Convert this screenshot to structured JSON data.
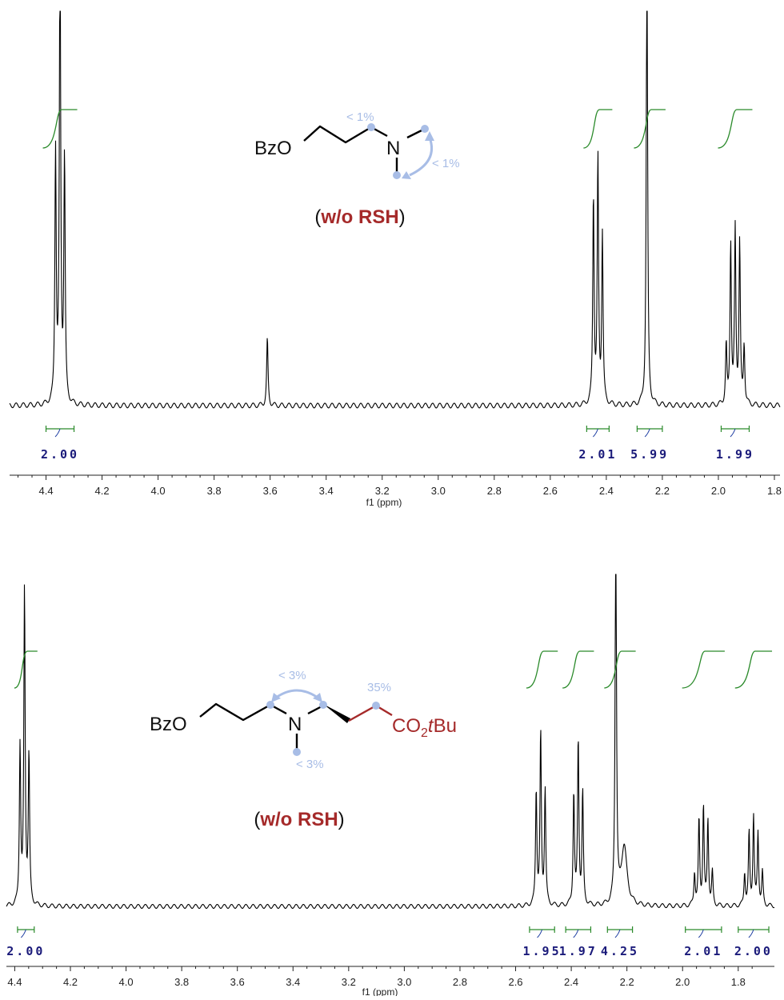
{
  "chart_data": [
    {
      "type": "line",
      "xlabel": "f1 (ppm)",
      "x_tick_labels": [
        "4.4",
        "4.2",
        "4.0",
        "3.8",
        "3.6",
        "3.4",
        "3.2",
        "3.0",
        "2.8",
        "2.6",
        "2.4",
        "2.2",
        "2.0",
        "1.8"
      ],
      "xlim": [
        4.53,
        1.78
      ],
      "peaks": [
        {
          "center": 4.35,
          "label": "triplet",
          "heights": [
            0.62,
            1.2,
            0.64
          ],
          "J": 0.016
        },
        {
          "center": 3.61,
          "label": "singlet",
          "heights": [
            0.17
          ]
        },
        {
          "center": 2.43,
          "label": "triplet",
          "heights": [
            0.43,
            0.62,
            0.53
          ],
          "J": 0.016
        },
        {
          "center": 2.255,
          "label": "singlet",
          "heights": [
            1.2
          ]
        },
        {
          "center": 1.94,
          "label": "quintet",
          "heights": [
            0.15,
            0.41,
            0.44,
            0.41,
            0.15
          ],
          "J": 0.016
        }
      ],
      "integrals": [
        {
          "from": 4.4,
          "to": 4.3,
          "value": "2.00"
        },
        {
          "from": 2.47,
          "to": 2.39,
          "value": "2.01"
        },
        {
          "from": 2.29,
          "to": 2.2,
          "value": "5.99"
        },
        {
          "from": 1.99,
          "to": 1.89,
          "value": "1.99"
        }
      ],
      "structure": {
        "left_group": "BzO",
        "nitrogen": "N",
        "annotation_1": "< 1%",
        "annotation_2": "< 1%"
      },
      "condition": {
        "open": "(",
        "text": "w/o RSH",
        "close": ")"
      }
    },
    {
      "type": "line",
      "xlabel": "f1 (ppm)",
      "x_tick_labels": [
        "4.4",
        "4.2",
        "4.0",
        "3.8",
        "3.6",
        "3.4",
        "3.2",
        "3.0",
        "2.8",
        "2.6",
        "2.4",
        "2.2",
        "2.0",
        "1.8"
      ],
      "xlim": [
        4.43,
        1.67
      ],
      "peaks": [
        {
          "center": 4.365,
          "label": "triplet",
          "heights": [
            0.45,
            0.95,
            0.48
          ],
          "J": 0.016
        },
        {
          "center": 2.51,
          "label": "triplet",
          "heights": [
            0.35,
            0.52,
            0.35
          ],
          "J": 0.016
        },
        {
          "center": 2.375,
          "label": "triplet",
          "heights": [
            0.34,
            0.5,
            0.34
          ],
          "J": 0.016
        },
        {
          "center": 2.24,
          "label": "singlet",
          "heights": [
            1.2
          ]
        },
        {
          "center": 2.21,
          "label": "multiplet",
          "heights": [
            0.18
          ]
        },
        {
          "center": 1.925,
          "label": "quintet",
          "heights": [
            0.1,
            0.26,
            0.3,
            0.26,
            0.1
          ],
          "J": 0.016
        },
        {
          "center": 1.745,
          "label": "quintet",
          "heights": [
            0.1,
            0.22,
            0.27,
            0.22,
            0.1
          ],
          "J": 0.016
        }
      ],
      "integrals": [
        {
          "from": 4.39,
          "to": 4.33,
          "value": "2.00"
        },
        {
          "from": 2.55,
          "to": 2.46,
          "value": "1.95"
        },
        {
          "from": 2.42,
          "to": 2.33,
          "value": "1.97"
        },
        {
          "from": 2.27,
          "to": 2.18,
          "value": "4.25"
        },
        {
          "from": 1.99,
          "to": 1.86,
          "value": "2.01"
        },
        {
          "from": 1.8,
          "to": 1.69,
          "value": "2.00"
        }
      ],
      "structure": {
        "left_group": "BzO",
        "nitrogen": "N",
        "ester_prefix": "CO",
        "ester_sub": "2",
        "ester_t": "t",
        "ester_suffix": "Bu",
        "annotation_1": "< 3%",
        "annotation_2": "< 3%",
        "annotation_3": "35%"
      },
      "condition": {
        "open": "(",
        "text": "w/o RSH",
        "close": ")"
      }
    }
  ],
  "colors": {
    "spectrum": "#000000",
    "integral_curve": "#2a8a2a",
    "integral_bracket": "#2a8a2a",
    "integral_value": "#1a1a7a",
    "highlight": "#a52a2a",
    "annotation": "#a8bde6"
  }
}
